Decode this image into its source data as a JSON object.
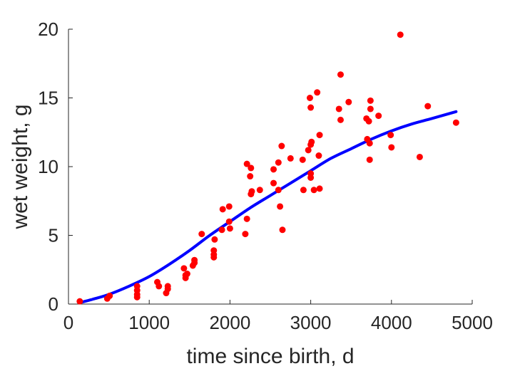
{
  "chart_data": {
    "type": "scatter",
    "title": "",
    "xlabel": "time since birth, d",
    "ylabel": "wet weight, g",
    "xlim": [
      0,
      5000
    ],
    "ylim": [
      0,
      20
    ],
    "xticks": [
      0,
      1000,
      2000,
      3000,
      4000,
      5000
    ],
    "yticks": [
      0,
      5,
      10,
      15,
      20
    ],
    "xtick_labels": [
      "0",
      "1000",
      "2000",
      "3000",
      "4000",
      "5000"
    ],
    "ytick_labels": [
      "0",
      "5",
      "10",
      "15",
      "20"
    ],
    "grid": false,
    "legend": "none",
    "series": [
      {
        "kind": "scatter",
        "color": "#ff0000",
        "points": [
          [
            140,
            0.2
          ],
          [
            480,
            0.4
          ],
          [
            510,
            0.6
          ],
          [
            850,
            0.5
          ],
          [
            850,
            0.7
          ],
          [
            850,
            1.0
          ],
          [
            850,
            1.3
          ],
          [
            1100,
            1.6
          ],
          [
            1120,
            1.3
          ],
          [
            1210,
            0.8
          ],
          [
            1230,
            1.1
          ],
          [
            1230,
            1.3
          ],
          [
            1430,
            2.6
          ],
          [
            1450,
            1.9
          ],
          [
            1450,
            2.1
          ],
          [
            1470,
            2.2
          ],
          [
            1540,
            2.8
          ],
          [
            1560,
            3.0
          ],
          [
            1560,
            3.2
          ],
          [
            1650,
            5.1
          ],
          [
            1800,
            3.4
          ],
          [
            1800,
            3.6
          ],
          [
            1800,
            3.9
          ],
          [
            1810,
            4.7
          ],
          [
            1900,
            5.4
          ],
          [
            1910,
            6.9
          ],
          [
            1990,
            7.1
          ],
          [
            1990,
            6.0
          ],
          [
            2000,
            5.5
          ],
          [
            2190,
            5.1
          ],
          [
            2210,
            6.2
          ],
          [
            2210,
            10.2
          ],
          [
            2250,
            9.3
          ],
          [
            2260,
            9.9
          ],
          [
            2260,
            8.0
          ],
          [
            2270,
            8.2
          ],
          [
            2370,
            8.3
          ],
          [
            2540,
            9.8
          ],
          [
            2540,
            8.8
          ],
          [
            2600,
            10.3
          ],
          [
            2600,
            8.3
          ],
          [
            2620,
            7.1
          ],
          [
            2640,
            11.5
          ],
          [
            2650,
            5.4
          ],
          [
            2750,
            10.6
          ],
          [
            2900,
            10.5
          ],
          [
            2910,
            8.3
          ],
          [
            2970,
            11.2
          ],
          [
            2990,
            15.0
          ],
          [
            3000,
            14.3
          ],
          [
            3000,
            9.5
          ],
          [
            3000,
            9.2
          ],
          [
            3000,
            11.6
          ],
          [
            3010,
            11.8
          ],
          [
            3040,
            8.3
          ],
          [
            3080,
            15.4
          ],
          [
            3100,
            10.8
          ],
          [
            3110,
            12.3
          ],
          [
            3110,
            8.4
          ],
          [
            3350,
            14.2
          ],
          [
            3370,
            16.7
          ],
          [
            3370,
            13.4
          ],
          [
            3470,
            14.7
          ],
          [
            3690,
            13.5
          ],
          [
            3700,
            12.0
          ],
          [
            3720,
            13.3
          ],
          [
            3730,
            11.7
          ],
          [
            3730,
            10.5
          ],
          [
            3740,
            14.8
          ],
          [
            3740,
            14.2
          ],
          [
            3840,
            13.7
          ],
          [
            3990,
            12.3
          ],
          [
            4000,
            11.4
          ],
          [
            4110,
            19.6
          ],
          [
            4350,
            10.7
          ],
          [
            4450,
            14.4
          ],
          [
            4800,
            13.2
          ]
        ]
      },
      {
        "kind": "line",
        "color": "#0000ff",
        "points": [
          [
            150,
            0.12
          ],
          [
            300,
            0.35
          ],
          [
            500,
            0.7
          ],
          [
            750,
            1.3
          ],
          [
            1000,
            2.0
          ],
          [
            1250,
            2.9
          ],
          [
            1500,
            3.9
          ],
          [
            1750,
            5.0
          ],
          [
            2000,
            6.0
          ],
          [
            2250,
            7.0
          ],
          [
            2500,
            7.9
          ],
          [
            2750,
            8.8
          ],
          [
            3000,
            9.7
          ],
          [
            3250,
            10.6
          ],
          [
            3500,
            11.3
          ],
          [
            3750,
            12.0
          ],
          [
            4000,
            12.6
          ],
          [
            4250,
            13.1
          ],
          [
            4500,
            13.5
          ],
          [
            4800,
            14.0
          ]
        ]
      }
    ]
  }
}
